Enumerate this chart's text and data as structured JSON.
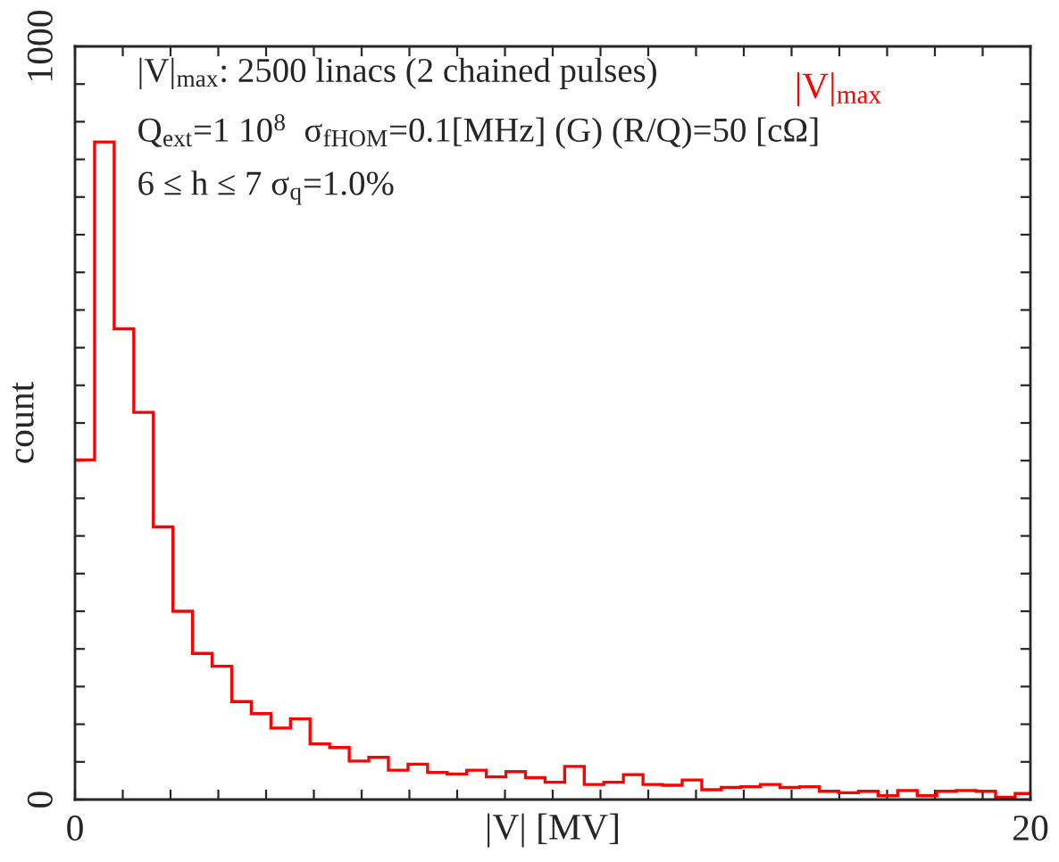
{
  "chart_data": {
    "type": "histogram",
    "xlabel": "|V| [MV]",
    "ylabel": "count",
    "annotations": [
      "|V|$_{max}$: 2500 linacs (2 chained pulses)",
      "Q$_{ext}$=1 10$^{8}$  σ$_{fHOM}$=0.1[MHz] (G) (R/Q)=50 [cΩ]",
      "6 ≤ h ≤ 7 σ$_{q}$=1.0%"
    ],
    "bins": [
      0,
      0.41,
      0.82,
      1.23,
      1.64,
      2.05,
      2.46,
      2.87,
      3.28,
      3.69,
      4.1,
      4.51,
      4.92,
      5.33,
      5.74,
      6.15,
      6.56,
      6.97,
      7.38,
      7.79,
      8.2,
      8.61,
      9.02,
      9.43,
      9.84,
      10.25,
      10.66,
      11.07,
      11.48,
      11.89,
      12.3,
      12.71,
      13.12,
      13.53,
      13.94,
      14.35,
      14.76,
      15.17,
      15.58,
      15.99,
      16.4,
      16.81,
      17.22,
      17.63,
      18.04,
      18.45,
      18.86,
      19.27,
      19.68,
      20
    ],
    "series": [
      {
        "name": "|V|$_{max}$",
        "color": "#ff0000",
        "values": [
          451,
          873,
          625,
          514,
          362,
          250,
          194,
          177,
          130,
          114,
          95,
          107,
          74,
          69,
          51,
          56,
          39,
          47,
          36,
          34,
          39,
          30,
          37,
          29,
          23,
          44,
          20,
          23,
          33,
          20,
          19,
          26,
          13,
          16,
          17,
          20,
          16,
          17,
          11,
          9,
          11,
          5,
          12,
          5,
          11,
          12,
          11,
          3,
          8
        ]
      }
    ],
    "xlim": [
      0,
      20
    ],
    "ylim": [
      0,
      1000
    ],
    "xticks": [
      0,
      {
        "value": 1,
        "label": null
      },
      {
        "value": 2,
        "label": null
      },
      {
        "value": 3,
        "label": null
      },
      {
        "value": 4,
        "label": null
      },
      {
        "value": 5,
        "label": null
      },
      {
        "value": 6,
        "label": null
      },
      {
        "value": 7,
        "label": null
      },
      {
        "value": 8,
        "label": null
      },
      {
        "value": 9,
        "label": null
      },
      {
        "value": 10,
        "label": null
      },
      {
        "value": 11,
        "label": null
      },
      {
        "value": 12,
        "label": null
      },
      {
        "value": 13,
        "label": null
      },
      {
        "value": 14,
        "label": null
      },
      {
        "value": 15,
        "label": null
      },
      {
        "value": 16,
        "label": null
      },
      {
        "value": 17,
        "label": null
      },
      {
        "value": 18,
        "label": null
      },
      {
        "value": 19,
        "label": null
      },
      20
    ],
    "yticks": [
      0,
      {
        "value": 50,
        "label": null
      },
      {
        "value": 100,
        "label": null
      },
      {
        "value": 150,
        "label": null
      },
      {
        "value": 200,
        "label": null
      },
      {
        "value": 250,
        "label": null
      },
      {
        "value": 300,
        "label": null
      },
      {
        "value": 350,
        "label": null
      },
      {
        "value": 400,
        "label": null
      },
      {
        "value": 450,
        "label": null
      },
      {
        "value": 500,
        "label": null
      },
      {
        "value": 550,
        "label": null
      },
      {
        "value": 600,
        "label": null
      },
      {
        "value": 650,
        "label": null
      },
      {
        "value": 700,
        "label": null
      },
      {
        "value": 750,
        "label": null
      },
      {
        "value": 800,
        "label": null
      },
      {
        "value": 850,
        "label": null
      },
      {
        "value": 900,
        "label": null
      },
      {
        "value": 950,
        "label": null
      },
      1000
    ],
    "legend": "top right",
    "grid": false
  }
}
